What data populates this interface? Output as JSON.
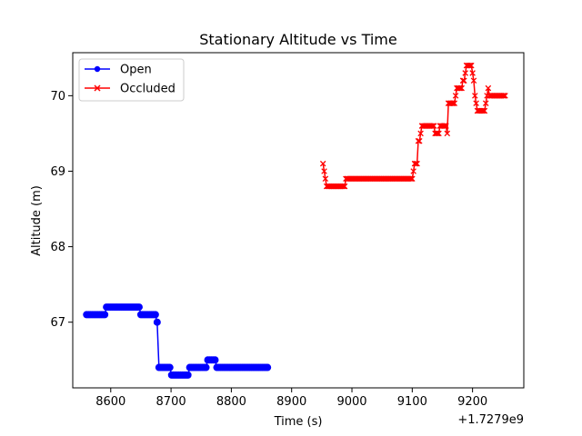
{
  "chart_data": {
    "type": "line",
    "title": "Stationary Altitude vs Time",
    "xlabel": "Time (s)",
    "ylabel": "Altitude (m)",
    "x_offset_label": "+1.7279e9",
    "xlim": [
      8537,
      9285
    ],
    "ylim": [
      66.13,
      70.57
    ],
    "x_ticks": [
      8600,
      8700,
      8800,
      8900,
      9000,
      9100,
      9200
    ],
    "y_ticks": [
      67,
      68,
      69,
      70
    ],
    "legend_position": "upper-left",
    "grid": false,
    "series": [
      {
        "name": "Open",
        "color": "#0000ff",
        "marker": "circle",
        "x": [
          8560,
          8563,
          8566,
          8569,
          8572,
          8575,
          8578,
          8581,
          8584,
          8587,
          8590,
          8593,
          8596,
          8599,
          8602,
          8605,
          8608,
          8611,
          8614,
          8617,
          8620,
          8623,
          8626,
          8629,
          8632,
          8635,
          8638,
          8641,
          8644,
          8647,
          8650,
          8653,
          8656,
          8659,
          8662,
          8665,
          8668,
          8671,
          8674,
          8677,
          8680,
          8683,
          8686,
          8689,
          8692,
          8695,
          8698,
          8701,
          8704,
          8707,
          8710,
          8713,
          8716,
          8719,
          8722,
          8725,
          8728,
          8731,
          8734,
          8737,
          8740,
          8743,
          8746,
          8749,
          8752,
          8755,
          8758,
          8761,
          8764,
          8767,
          8770,
          8773,
          8776,
          8779,
          8782,
          8785,
          8788,
          8791,
          8794,
          8797,
          8800,
          8803,
          8806,
          8809,
          8812,
          8815,
          8818,
          8821,
          8824,
          8827,
          8830,
          8833,
          8836,
          8839,
          8842,
          8845,
          8848,
          8851,
          8854,
          8857,
          8860
        ],
        "y": [
          67.1,
          67.1,
          67.1,
          67.1,
          67.1,
          67.1,
          67.1,
          67.1,
          67.1,
          67.1,
          67.1,
          67.2,
          67.2,
          67.2,
          67.2,
          67.2,
          67.2,
          67.2,
          67.2,
          67.2,
          67.2,
          67.2,
          67.2,
          67.2,
          67.2,
          67.2,
          67.2,
          67.2,
          67.2,
          67.2,
          67.1,
          67.1,
          67.1,
          67.1,
          67.1,
          67.1,
          67.1,
          67.1,
          67.1,
          67.0,
          66.4,
          66.4,
          66.4,
          66.4,
          66.4,
          66.4,
          66.4,
          66.3,
          66.3,
          66.3,
          66.3,
          66.3,
          66.3,
          66.3,
          66.3,
          66.3,
          66.3,
          66.4,
          66.4,
          66.4,
          66.4,
          66.4,
          66.4,
          66.4,
          66.4,
          66.4,
          66.4,
          66.5,
          66.5,
          66.5,
          66.5,
          66.5,
          66.4,
          66.4,
          66.4,
          66.4,
          66.4,
          66.4,
          66.4,
          66.4,
          66.4,
          66.4,
          66.4,
          66.4,
          66.4,
          66.4,
          66.4,
          66.4,
          66.4,
          66.4,
          66.4,
          66.4,
          66.4,
          66.4,
          66.4,
          66.4,
          66.4,
          66.4,
          66.4,
          66.4,
          66.4
        ]
      },
      {
        "name": "Occluded",
        "color": "#ff0000",
        "marker": "x",
        "x": [
          8952,
          8954,
          8956,
          8958,
          8960,
          8962,
          8964,
          8966,
          8968,
          8970,
          8972,
          8974,
          8976,
          8978,
          8980,
          8982,
          8984,
          8986,
          8988,
          8990,
          8992,
          8994,
          8996,
          8998,
          9000,
          9002,
          9004,
          9006,
          9008,
          9010,
          9012,
          9014,
          9016,
          9018,
          9020,
          9022,
          9024,
          9026,
          9028,
          9030,
          9032,
          9034,
          9036,
          9038,
          9040,
          9042,
          9044,
          9046,
          9048,
          9050,
          9052,
          9054,
          9056,
          9058,
          9060,
          9062,
          9064,
          9066,
          9068,
          9070,
          9072,
          9074,
          9076,
          9078,
          9080,
          9082,
          9084,
          9086,
          9088,
          9090,
          9092,
          9094,
          9096,
          9098,
          9100,
          9102,
          9104,
          9106,
          9108,
          9110,
          9112,
          9114,
          9116,
          9118,
          9120,
          9122,
          9124,
          9126,
          9128,
          9130,
          9132,
          9134,
          9136,
          9138,
          9140,
          9142,
          9144,
          9146,
          9148,
          9150,
          9152,
          9154,
          9156,
          9158,
          9160,
          9162,
          9164,
          9166,
          9168,
          9170,
          9172,
          9174,
          9176,
          9178,
          9180,
          9182,
          9184,
          9186,
          9188,
          9190,
          9192,
          9194,
          9196,
          9198,
          9200,
          9202,
          9204,
          9206,
          9208,
          9210,
          9212,
          9214,
          9216,
          9218,
          9220,
          9222,
          9224,
          9226,
          9228,
          9230,
          9232,
          9234,
          9236,
          9238,
          9240,
          9242,
          9244,
          9246,
          9248,
          9250,
          9252,
          9254
        ],
        "y": [
          69.1,
          69.0,
          68.9,
          68.8,
          68.8,
          68.8,
          68.8,
          68.8,
          68.8,
          68.8,
          68.8,
          68.8,
          68.8,
          68.8,
          68.8,
          68.8,
          68.8,
          68.8,
          68.8,
          68.9,
          68.9,
          68.9,
          68.9,
          68.9,
          68.9,
          68.9,
          68.9,
          68.9,
          68.9,
          68.9,
          68.9,
          68.9,
          68.9,
          68.9,
          68.9,
          68.9,
          68.9,
          68.9,
          68.9,
          68.9,
          68.9,
          68.9,
          68.9,
          68.9,
          68.9,
          68.9,
          68.9,
          68.9,
          68.9,
          68.9,
          68.9,
          68.9,
          68.9,
          68.9,
          68.9,
          68.9,
          68.9,
          68.9,
          68.9,
          68.9,
          68.9,
          68.9,
          68.9,
          68.9,
          68.9,
          68.9,
          68.9,
          68.9,
          68.9,
          68.9,
          68.9,
          68.9,
          68.9,
          68.9,
          68.9,
          69.0,
          69.1,
          69.1,
          69.1,
          69.4,
          69.4,
          69.5,
          69.6,
          69.6,
          69.6,
          69.6,
          69.6,
          69.6,
          69.6,
          69.6,
          69.6,
          69.6,
          69.6,
          69.5,
          69.5,
          69.5,
          69.5,
          69.6,
          69.6,
          69.6,
          69.6,
          69.6,
          69.6,
          69.5,
          69.9,
          69.9,
          69.9,
          69.9,
          69.9,
          69.9,
          70.0,
          70.1,
          70.1,
          70.1,
          70.1,
          70.1,
          70.2,
          70.2,
          70.3,
          70.4,
          70.4,
          70.4,
          70.4,
          70.4,
          70.3,
          70.2,
          70.0,
          69.9,
          69.8,
          69.8,
          69.8,
          69.8,
          69.8,
          69.8,
          69.8,
          69.9,
          70.0,
          70.1,
          70.0,
          70.0,
          70.0,
          70.0,
          70.0,
          70.0,
          70.0,
          70.0,
          70.0,
          70.0,
          70.0,
          70.0,
          70.0,
          70.0
        ]
      }
    ]
  }
}
